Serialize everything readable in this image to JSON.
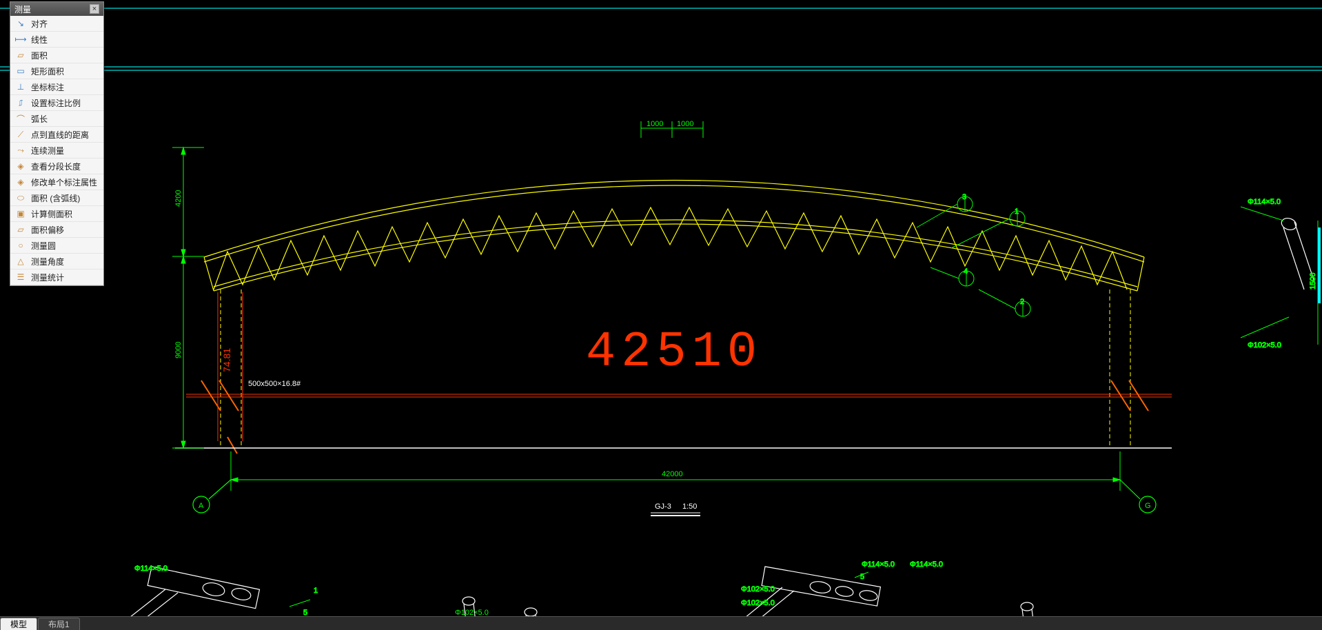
{
  "panel": {
    "title": "测量",
    "items": [
      {
        "icon": "↘",
        "color": "#3a7fc4",
        "label": "对齐"
      },
      {
        "icon": "⟼",
        "color": "#3a7fc4",
        "label": "线性"
      },
      {
        "icon": "▱",
        "color": "#c4873a",
        "label": "面积"
      },
      {
        "icon": "▭",
        "color": "#3a7fc4",
        "label": "矩形面积"
      },
      {
        "icon": "⊥",
        "color": "#3a7fc4",
        "label": "坐标标注"
      },
      {
        "icon": "⎎",
        "color": "#3a7fc4",
        "label": "设置标注比例"
      },
      {
        "icon": "⌒",
        "color": "#c4873a",
        "label": "弧长"
      },
      {
        "icon": "⟋",
        "color": "#c4873a",
        "label": "点到直线的距离"
      },
      {
        "icon": "⤳",
        "color": "#c4873a",
        "label": "连续测量"
      },
      {
        "icon": "◈",
        "color": "#c4873a",
        "label": "查看分段长度"
      },
      {
        "icon": "◈",
        "color": "#c4873a",
        "label": "修改单个标注属性"
      },
      {
        "icon": "⬭",
        "color": "#c4873a",
        "label": "面积 (含弧线)"
      },
      {
        "icon": "▣",
        "color": "#c4873a",
        "label": "计算侧面积"
      },
      {
        "icon": "▱",
        "color": "#c4873a",
        "label": "面积偏移"
      },
      {
        "icon": "○",
        "color": "#c4873a",
        "label": "测量圆"
      },
      {
        "icon": "△",
        "color": "#c4873a",
        "label": "测量角度"
      },
      {
        "icon": "☰",
        "color": "#c4873a",
        "label": "测量统计"
      }
    ]
  },
  "tabs": [
    {
      "label": "模型",
      "active": true
    },
    {
      "label": "布局1",
      "active": false
    }
  ],
  "drawing": {
    "colors": {
      "cyan": "#00dddd",
      "green": "#00ff00",
      "yellow": "#ffff00",
      "red": "#ff2200",
      "orange": "#ff6600",
      "white": "#ffffff"
    },
    "big_dimension": "42510",
    "span_dim": "42000",
    "top_dims": [
      "1000",
      "1000"
    ],
    "left_dims": [
      "4200",
      "9000"
    ],
    "diag_dim": "74.81",
    "beam_note": "500x500×16.8#",
    "section_label": "GJ-3",
    "section_scale": "1:50",
    "grid_left": "A",
    "grid_right": "G",
    "callouts": [
      "1",
      "2",
      "3",
      "4"
    ],
    "detail_labels": {
      "pipe1": "Φ114×5.0",
      "pipe2": "Φ102×5.0",
      "det_a": "Φ114×5.0",
      "det_b": "Φ102×5.0",
      "det_c": "Φ102×5.0",
      "det_d": "Φ114×5.0",
      "det_e": "Φ114×5.0",
      "det_f": "Φ102×5.0",
      "n5": "5",
      "n1": "1",
      "n5b": "5"
    },
    "right_vdim": "1500"
  }
}
